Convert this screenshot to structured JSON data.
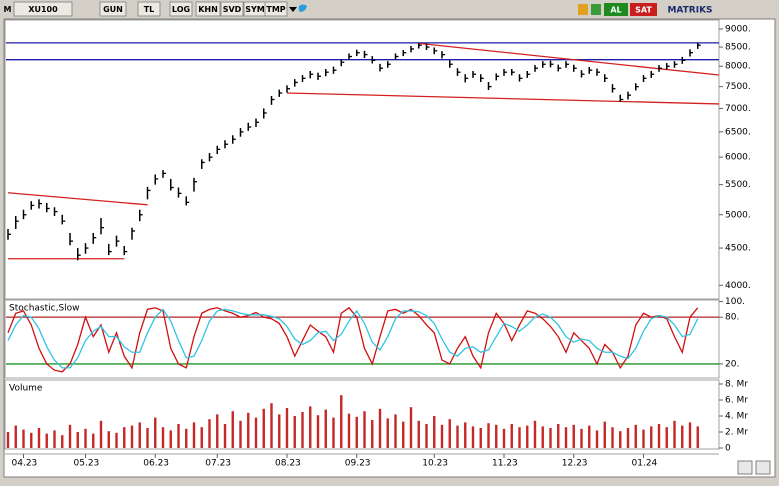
{
  "toolbar": {
    "items": [
      "M",
      "XU100",
      "GUN",
      "TL",
      "LOG",
      "KHN",
      "SVD",
      "SYM",
      "TMP"
    ],
    "buy": "AL",
    "sell": "SAT",
    "brand": "MATRIKS"
  },
  "chart_data": [
    {
      "type": "ohlc",
      "log_scale": true,
      "color": "#000000",
      "categories": [
        null,
        null,
        "04.23",
        null,
        null,
        null,
        null,
        null,
        null,
        null,
        "05.23",
        null,
        null,
        null,
        null,
        null,
        null,
        null,
        null,
        "06.23",
        null,
        null,
        null,
        null,
        null,
        null,
        null,
        "07.23",
        null,
        null,
        null,
        null,
        null,
        null,
        null,
        null,
        "08.23",
        null,
        null,
        null,
        null,
        null,
        null,
        null,
        null,
        "09.23",
        null,
        null,
        null,
        null,
        null,
        null,
        null,
        null,
        null,
        "10.23",
        null,
        null,
        null,
        null,
        null,
        null,
        null,
        null,
        "11.23",
        null,
        null,
        null,
        null,
        null,
        null,
        null,
        null,
        "12.23",
        null,
        null,
        null,
        null,
        null,
        null,
        null,
        null,
        "01.24",
        null,
        null,
        null,
        null,
        null,
        null,
        null
      ],
      "values": [
        4700,
        4900,
        5000,
        5150,
        5180,
        5100,
        5050,
        4900,
        4600,
        4400,
        4500,
        4650,
        4800,
        4450,
        4600,
        4450,
        4750,
        5000,
        5400,
        5600,
        5700,
        5450,
        5350,
        5200,
        5550,
        5900,
        6000,
        6150,
        6250,
        6350,
        6500,
        6600,
        6700,
        6900,
        7200,
        7350,
        7450,
        7600,
        7700,
        7800,
        7750,
        7850,
        7900,
        8100,
        8250,
        8350,
        8300,
        8150,
        7950,
        8050,
        8250,
        8350,
        8450,
        8550,
        8500,
        8400,
        8300,
        8050,
        7850,
        7700,
        7800,
        7700,
        7500,
        7750,
        7850,
        7850,
        7700,
        7800,
        7950,
        8050,
        8050,
        7950,
        8050,
        7950,
        7800,
        7900,
        7850,
        7700,
        7450,
        7200,
        7300,
        7500,
        7700,
        7800,
        7950,
        8000,
        8050,
        8150,
        8350,
        8550
      ],
      "high": [
        4780,
        4980,
        5080,
        5220,
        5250,
        5190,
        5120,
        5000,
        4720,
        4500,
        4570,
        4720,
        4950,
        4560,
        4680,
        4530,
        4800,
        5080,
        5460,
        5680,
        5760,
        5600,
        5450,
        5300,
        5620,
        5960,
        6080,
        6220,
        6330,
        6430,
        6580,
        6690,
        6780,
        7000,
        7280,
        7430,
        7530,
        7680,
        7780,
        7880,
        7840,
        7930,
        7990,
        8180,
        8330,
        8430,
        8400,
        8260,
        8060,
        8130,
        8330,
        8420,
        8530,
        8620,
        8590,
        8490,
        8390,
        8150,
        7950,
        7800,
        7880,
        7800,
        7610,
        7820,
        7930,
        7930,
        7800,
        7880,
        8030,
        8130,
        8140,
        8040,
        8130,
        8040,
        7900,
        7980,
        7940,
        7800,
        7560,
        7310,
        7380,
        7580,
        7780,
        7880,
        8030,
        8080,
        8130,
        8240,
        8440,
        8620
      ],
      "low": [
        4620,
        4780,
        4930,
        5080,
        5100,
        5040,
        4980,
        4850,
        4540,
        4330,
        4420,
        4560,
        4700,
        4400,
        4520,
        4400,
        4620,
        4900,
        5250,
        5500,
        5620,
        5400,
        5280,
        5150,
        5380,
        5780,
        5920,
        6060,
        6170,
        6260,
        6400,
        6520,
        6600,
        6780,
        7080,
        7260,
        7360,
        7500,
        7610,
        7700,
        7660,
        7750,
        7810,
        8000,
        8160,
        8260,
        8210,
        8070,
        7870,
        7960,
        8160,
        8260,
        8360,
        8460,
        8420,
        8310,
        8200,
        7960,
        7760,
        7600,
        7710,
        7610,
        7420,
        7650,
        7760,
        7770,
        7620,
        7710,
        7860,
        7960,
        7970,
        7870,
        7960,
        7860,
        7720,
        7810,
        7760,
        7610,
        7360,
        7150,
        7200,
        7410,
        7610,
        7710,
        7860,
        7920,
        7960,
        8060,
        8250,
        8450
      ],
      "ylim": [
        3830,
        9260
      ],
      "yticks": [
        {
          "value": 4000,
          "label": "4000."
        },
        {
          "value": 4500,
          "label": "4500."
        },
        {
          "value": 5000,
          "label": "5000."
        },
        {
          "value": 5500,
          "label": "5500."
        },
        {
          "value": 6000,
          "label": "6000."
        },
        {
          "value": 6500,
          "label": "6500."
        },
        {
          "value": 7000,
          "label": "7000."
        },
        {
          "value": 7500,
          "label": "7500."
        },
        {
          "value": 8000,
          "label": "8000."
        },
        {
          "value": 8500,
          "label": "8500."
        },
        {
          "value": 9000,
          "label": "9000."
        }
      ],
      "hlines": [
        {
          "value": 8614,
          "color": "#1e1ea8"
        },
        {
          "value": 8167,
          "color": "#1e1ea8"
        }
      ],
      "trend_lines": [
        {
          "start": [
            0,
            5360
          ],
          "end": [
            18,
            5160
          ],
          "color": "#d42020"
        },
        {
          "start": [
            0,
            4350
          ],
          "end": [
            15,
            4350
          ],
          "color": "#d42020"
        },
        {
          "start": [
            53,
            8600
          ],
          "end": [
            92,
            7780
          ],
          "color": "#d42020"
        },
        {
          "start": [
            36,
            7350
          ],
          "end": [
            92,
            7100
          ],
          "color": "#d42020"
        }
      ]
    },
    {
      "type": "line",
      "title": "Stochastic,Slow",
      "series": [
        {
          "color": "#d01010",
          "values": [
            60,
            85,
            88,
            70,
            40,
            20,
            12,
            10,
            20,
            45,
            80,
            55,
            70,
            35,
            60,
            30,
            15,
            60,
            90,
            92,
            88,
            40,
            20,
            15,
            55,
            85,
            90,
            92,
            88,
            85,
            80,
            82,
            86,
            80,
            78,
            72,
            55,
            30,
            50,
            70,
            62,
            55,
            35,
            85,
            92,
            80,
            40,
            20,
            55,
            88,
            90,
            85,
            90,
            82,
            70,
            60,
            25,
            20,
            40,
            55,
            30,
            15,
            60,
            85,
            72,
            50,
            70,
            88,
            85,
            78,
            68,
            55,
            35,
            60,
            50,
            40,
            20,
            45,
            35,
            15,
            30,
            70,
            85,
            80,
            82,
            78,
            55,
            35,
            80,
            92
          ]
        },
        {
          "color": "#30c4e4",
          "values": [
            50,
            70,
            82,
            80,
            65,
            42,
            25,
            15,
            15,
            28,
            50,
            62,
            68,
            55,
            55,
            42,
            35,
            35,
            60,
            80,
            90,
            75,
            50,
            28,
            30,
            50,
            75,
            88,
            90,
            88,
            85,
            83,
            83,
            83,
            81,
            78,
            68,
            52,
            45,
            50,
            60,
            62,
            50,
            58,
            75,
            88,
            72,
            48,
            38,
            55,
            78,
            88,
            88,
            87,
            82,
            72,
            52,
            35,
            30,
            40,
            42,
            35,
            38,
            55,
            72,
            68,
            62,
            70,
            80,
            84,
            80,
            70,
            55,
            48,
            52,
            50,
            40,
            35,
            35,
            30,
            27,
            40,
            62,
            78,
            82,
            80,
            70,
            55,
            58,
            78
          ]
        }
      ],
      "ylim": [
        2,
        102
      ],
      "yticks": [
        {
          "value": 100,
          "label": "100."
        },
        {
          "value": 80,
          "label": "80."
        },
        {
          "value": 20,
          "label": "20."
        }
      ],
      "levels": [
        {
          "value": 80,
          "color": "#b02828"
        },
        {
          "value": 20,
          "color": "#20962a"
        }
      ]
    },
    {
      "type": "bar",
      "title": "Volume",
      "color": "#c62828",
      "values": [
        2.0,
        2.8,
        2.3,
        1.9,
        2.5,
        1.8,
        2.2,
        1.6,
        2.9,
        2.0,
        2.4,
        1.8,
        3.4,
        2.1,
        1.9,
        2.6,
        2.8,
        3.2,
        2.5,
        3.8,
        2.6,
        2.2,
        3.0,
        2.4,
        3.2,
        2.6,
        3.6,
        4.2,
        3.0,
        4.6,
        3.4,
        4.4,
        3.8,
        4.9,
        5.6,
        4.2,
        5.0,
        4.0,
        4.5,
        5.2,
        4.1,
        4.8,
        3.8,
        6.6,
        4.3,
        3.9,
        4.6,
        3.5,
        4.9,
        3.7,
        4.2,
        3.3,
        5.1,
        3.4,
        3.0,
        4.0,
        2.9,
        3.6,
        2.8,
        3.2,
        2.7,
        2.5,
        3.1,
        2.9,
        2.4,
        3.0,
        2.6,
        2.8,
        3.4,
        2.7,
        2.5,
        3.0,
        2.6,
        2.9,
        2.4,
        2.8,
        2.2,
        3.3,
        2.6,
        2.1,
        2.5,
        2.9,
        2.3,
        2.7,
        3.0,
        2.6,
        3.4,
        2.8,
        3.2,
        2.7
      ],
      "ylim": [
        0,
        8.5
      ],
      "yticks": [
        {
          "value": 8,
          "label": "8. Mr"
        },
        {
          "value": 6,
          "label": "6. Mr"
        },
        {
          "value": 4,
          "label": "4. Mr"
        },
        {
          "value": 2,
          "label": "2. Mr"
        },
        0
      ]
    }
  ]
}
